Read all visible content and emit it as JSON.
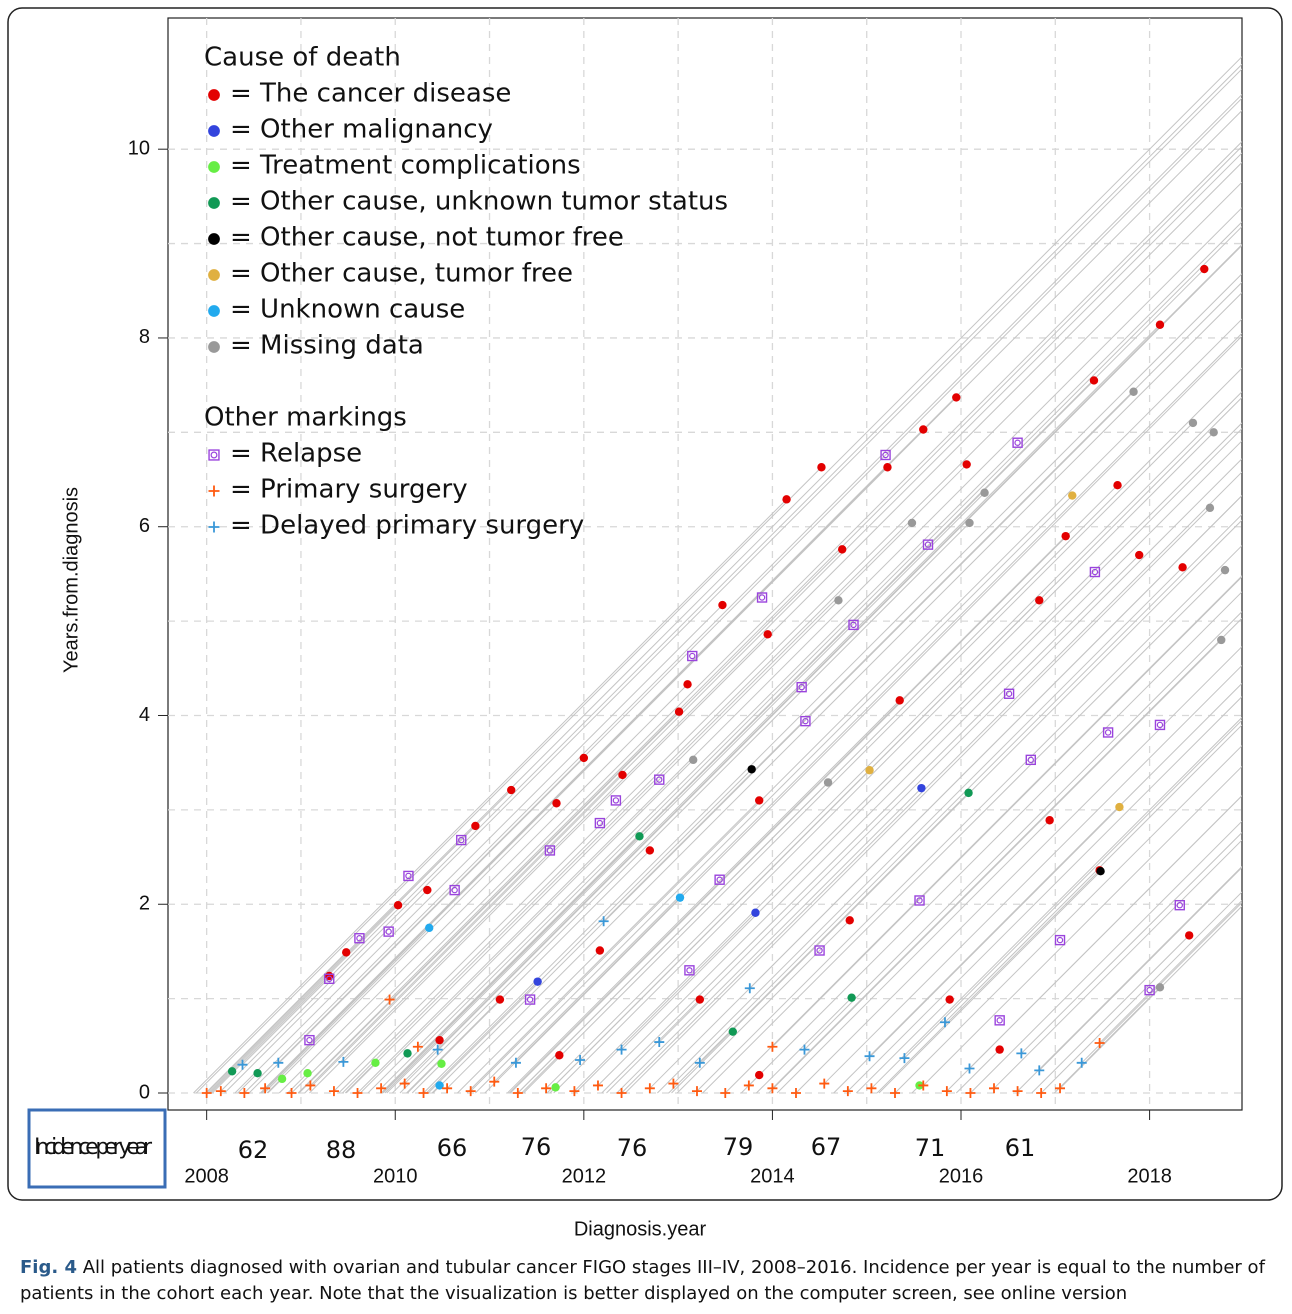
{
  "chart_data": {
    "type": "scatter",
    "xlabel": "Diagnosis.year",
    "ylabel": "Years.from.diagnosis",
    "xlim": [
      2007.59,
      2018.98
    ],
    "ylim": [
      -0.18,
      11.39
    ],
    "xticks": [
      2008,
      2010,
      2012,
      2014,
      2016,
      2018
    ],
    "yticks": [
      0,
      2,
      4,
      6,
      8,
      10
    ],
    "grid": true,
    "legend_groups": [
      "Cause of death",
      "Other markings"
    ],
    "series": [
      {
        "name": "= The cancer disease",
        "group": 0,
        "marker": "dot",
        "color": "#e30000",
        "x": [
          2018.58,
          2018.11,
          2017.41,
          2015.95,
          2015.6,
          2014.52,
          2015.22,
          2014.15,
          2014.74,
          2017.66,
          2013.47,
          2017.11,
          2013.95,
          2013.1,
          2013.01,
          2012.0,
          2012.41,
          2011.23,
          2010.85,
          2011.71,
          2010.34,
          2010.03,
          2009.48,
          2009.3,
          2018.35,
          2017.89,
          2016.83,
          2016.06,
          2016.94,
          2017.47,
          2015.35,
          2013.86,
          2012.7,
          2012.17,
          2011.11,
          2010.47,
          2014.82,
          2015.88,
          2016.41,
          2018.42,
          2013.23,
          2011.74,
          2013.86
        ],
        "y": [
          8.73,
          8.14,
          7.55,
          7.37,
          7.03,
          6.63,
          6.63,
          6.29,
          5.76,
          6.44,
          5.17,
          5.9,
          4.86,
          4.33,
          4.04,
          3.55,
          3.37,
          3.21,
          2.83,
          3.07,
          2.15,
          1.99,
          1.49,
          1.24,
          5.57,
          5.7,
          5.22,
          6.66,
          2.89,
          2.36,
          4.16,
          3.1,
          2.57,
          1.51,
          0.99,
          0.56,
          1.83,
          0.99,
          0.46,
          1.67,
          0.99,
          0.4,
          0.19
        ]
      },
      {
        "name": "= Other malignancy",
        "group": 0,
        "marker": "dot",
        "color": "#3344dd",
        "x": [
          2015.58,
          2013.82,
          2011.51
        ],
        "y": [
          3.23,
          1.91,
          1.18
        ]
      },
      {
        "name": "= Treatment complications",
        "group": 0,
        "marker": "dot",
        "color": "#66ee44",
        "x": [
          2010.49,
          2009.07,
          2008.8,
          2011.7,
          2015.56,
          2009.79
        ],
        "y": [
          0.31,
          0.21,
          0.15,
          0.06,
          0.08,
          0.32
        ]
      },
      {
        "name": "= Other cause, unknown tumor status",
        "group": 0,
        "marker": "dot",
        "color": "#119955",
        "x": [
          2008.27,
          2008.54,
          2010.13,
          2012.59,
          2016.08,
          2014.84,
          2013.58
        ],
        "y": [
          0.23,
          0.21,
          0.42,
          2.72,
          3.18,
          1.01,
          0.65
        ]
      },
      {
        "name": "= Other cause, not tumor free",
        "group": 0,
        "marker": "dot",
        "color": "#000000",
        "x": [
          2013.78,
          2017.48
        ],
        "y": [
          3.43,
          2.35
        ]
      },
      {
        "name": "= Other cause, tumor free",
        "group": 0,
        "marker": "dot",
        "color": "#e0b040",
        "x": [
          2017.18,
          2015.03,
          2017.68
        ],
        "y": [
          6.33,
          3.42,
          3.03
        ]
      },
      {
        "name": "= Unknown cause",
        "group": 0,
        "marker": "dot",
        "color": "#22aaee",
        "x": [
          2010.36,
          2013.02,
          2010.47
        ],
        "y": [
          1.75,
          2.07,
          0.08
        ]
      },
      {
        "name": "= Missing data",
        "group": 0,
        "marker": "dot",
        "color": "#999999",
        "x": [
          2017.83,
          2018.46,
          2018.68,
          2016.25,
          2015.48,
          2016.09,
          2018.64,
          2014.7,
          2013.16,
          2018.8,
          2018.76,
          2018.11,
          2014.59
        ],
        "y": [
          7.43,
          7.1,
          7.0,
          6.36,
          6.04,
          6.04,
          6.2,
          5.22,
          3.53,
          5.54,
          4.8,
          1.12,
          3.29
        ]
      },
      {
        "name": "= Relapse",
        "group": 1,
        "marker": "relapse",
        "color": "#9a44dd",
        "x": [
          2016.6,
          2015.2,
          2015.65,
          2013.89,
          2017.42,
          2014.86,
          2013.15,
          2016.51,
          2014.31,
          2014.35,
          2018.11,
          2017.56,
          2010.7,
          2012.8,
          2016.74,
          2012.34,
          2012.17,
          2011.64,
          2010.14,
          2010.63,
          2009.93,
          2009.3,
          2009.62,
          2013.44,
          2015.56,
          2018.0,
          2018.32,
          2013.12,
          2014.5,
          2016.41,
          2011.43,
          2009.09,
          2017.05
        ],
        "y": [
          6.89,
          6.76,
          5.81,
          5.25,
          5.52,
          4.96,
          4.63,
          4.23,
          4.3,
          3.94,
          3.9,
          3.82,
          2.68,
          3.32,
          3.53,
          3.1,
          2.86,
          2.57,
          2.3,
          2.15,
          1.71,
          1.21,
          1.64,
          2.26,
          2.04,
          1.09,
          1.99,
          1.3,
          1.51,
          0.77,
          0.99,
          0.56,
          1.62
        ]
      },
      {
        "name": "= Primary surgery",
        "group": 1,
        "marker": "plus",
        "color": "#ff5a10",
        "x": [
          2008.0,
          2008.15,
          2008.4,
          2008.62,
          2008.9,
          2009.1,
          2009.35,
          2009.6,
          2009.85,
          2009.94,
          2010.1,
          2010.3,
          2010.55,
          2010.8,
          2011.05,
          2011.3,
          2011.6,
          2011.9,
          2012.15,
          2012.4,
          2012.7,
          2012.95,
          2013.2,
          2013.5,
          2013.75,
          2014.0,
          2014.25,
          2014.55,
          2014.8,
          2015.05,
          2015.3,
          2015.6,
          2015.85,
          2016.1,
          2016.35,
          2016.6,
          2016.85,
          2017.05,
          2017.47,
          2014.0,
          2010.24
        ],
        "y": [
          0.0,
          0.02,
          0.0,
          0.05,
          0.0,
          0.08,
          0.02,
          0.0,
          0.05,
          0.99,
          0.1,
          0.0,
          0.05,
          0.02,
          0.12,
          0.0,
          0.05,
          0.02,
          0.08,
          0.0,
          0.05,
          0.1,
          0.02,
          0.0,
          0.08,
          0.05,
          0.0,
          0.1,
          0.02,
          0.05,
          0.0,
          0.08,
          0.02,
          0.0,
          0.05,
          0.02,
          0.0,
          0.05,
          0.53,
          0.49,
          0.49
        ]
      },
      {
        "name": "= Delayed primary surgery",
        "group": 1,
        "marker": "plus",
        "color": "#3a98d8",
        "x": [
          2008.38,
          2008.76,
          2009.45,
          2010.45,
          2011.28,
          2011.96,
          2012.21,
          2012.4,
          2012.8,
          2013.23,
          2013.76,
          2014.34,
          2015.03,
          2015.4,
          2015.83,
          2016.09,
          2016.64,
          2017.28,
          2016.83
        ],
        "y": [
          0.3,
          0.32,
          0.33,
          0.46,
          0.32,
          0.35,
          1.82,
          0.46,
          0.54,
          0.32,
          1.11,
          0.46,
          0.39,
          0.37,
          0.75,
          0.26,
          0.42,
          0.32,
          0.24
        ]
      }
    ],
    "incidence": {
      "label": "Incidence per year",
      "values": [
        62,
        88,
        66,
        76,
        76,
        79,
        67,
        71,
        61
      ]
    }
  },
  "caption": {
    "label": "Fig. 4",
    "lines": [
      " All patients diagnosed with ovarian and tubular cancer FIGO stages III–IV, 2008–2016. Incidence per year is equal to the number of",
      "patients in the cohort each year. Note that the visualization is better displayed on the computer screen, see online version"
    ]
  }
}
